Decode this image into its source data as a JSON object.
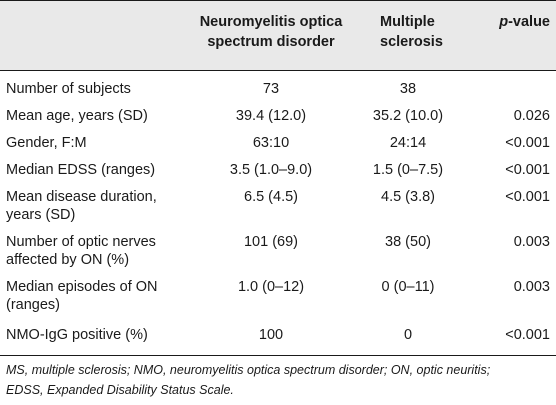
{
  "table": {
    "columns": [
      {
        "lines": [
          "",
          ""
        ]
      },
      {
        "lines": [
          "Neuromyelitis optica",
          "spectrum disorder"
        ]
      },
      {
        "lines": [
          "Multiple",
          "sclerosis"
        ]
      },
      {
        "italic": "p",
        "rest": "-value"
      }
    ],
    "rows": [
      {
        "label": [
          "Number of subjects"
        ],
        "nmosd": "73",
        "ms": "38",
        "p": ""
      },
      {
        "label": [
          "Mean age, years (SD)"
        ],
        "nmosd": "39.4 (12.0)",
        "ms": "35.2 (10.0)",
        "p": "0.026"
      },
      {
        "label": [
          "Gender, F:M"
        ],
        "nmosd": "63:10",
        "ms": "24:14",
        "p": "<0.001"
      },
      {
        "label": [
          "Median EDSS (ranges)"
        ],
        "nmosd": "3.5 (1.0–9.0)",
        "ms": "1.5 (0–7.5)",
        "p": "<0.001"
      },
      {
        "label": [
          "Mean disease duration,",
          "years (SD)"
        ],
        "nmosd": "6.5 (4.5)",
        "ms": "4.5 (3.8)",
        "p": "<0.001"
      },
      {
        "label": [
          "Number of optic nerves",
          "affected by ON (%)"
        ],
        "nmosd": "101 (69)",
        "ms": "38 (50)",
        "p": "0.003"
      },
      {
        "label": [
          "Median episodes of ON",
          "(ranges)"
        ],
        "nmosd": "1.0 (0–12)",
        "ms": "0 (0–11)",
        "p": "0.003"
      },
      {
        "label": [
          "NMO-IgG positive (%)"
        ],
        "nmosd": "100",
        "ms": "0",
        "p": "<0.001"
      }
    ]
  },
  "footnote": [
    "MS, multiple sclerosis; NMO, neuromyelitis optica spectrum disorder; ON, optic neuritis;",
    "EDSS, Expanded Disability Status Scale."
  ]
}
